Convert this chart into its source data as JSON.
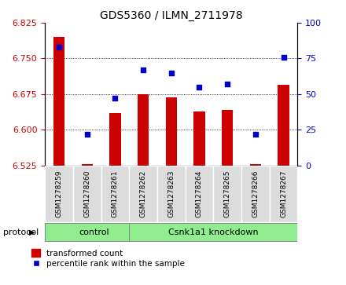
{
  "title": "GDS5360 / ILMN_2711978",
  "samples": [
    "GSM1278259",
    "GSM1278260",
    "GSM1278261",
    "GSM1278262",
    "GSM1278263",
    "GSM1278264",
    "GSM1278265",
    "GSM1278266",
    "GSM1278267"
  ],
  "bar_values": [
    6.795,
    6.528,
    6.635,
    6.675,
    6.668,
    6.638,
    6.641,
    6.527,
    6.695
  ],
  "scatter_values": [
    83,
    22,
    47,
    67,
    65,
    55,
    57,
    22,
    76
  ],
  "ylim_left": [
    6.525,
    6.825
  ],
  "ylim_right": [
    0,
    100
  ],
  "yticks_left": [
    6.525,
    6.6,
    6.675,
    6.75,
    6.825
  ],
  "yticks_right": [
    0,
    25,
    50,
    75,
    100
  ],
  "bar_color": "#CC0000",
  "scatter_color": "#0000CC",
  "control_count": 3,
  "knockdown_count": 6,
  "control_label": "control",
  "knockdown_label": "Csnk1a1 knockdown",
  "protocol_label": "protocol",
  "legend_bar_label": "transformed count",
  "legend_scatter_label": "percentile rank within the sample",
  "group_color": "#90EE90",
  "bg_color": "#DCDCDC",
  "bar_width": 0.4,
  "bar_bottom": 6.525
}
